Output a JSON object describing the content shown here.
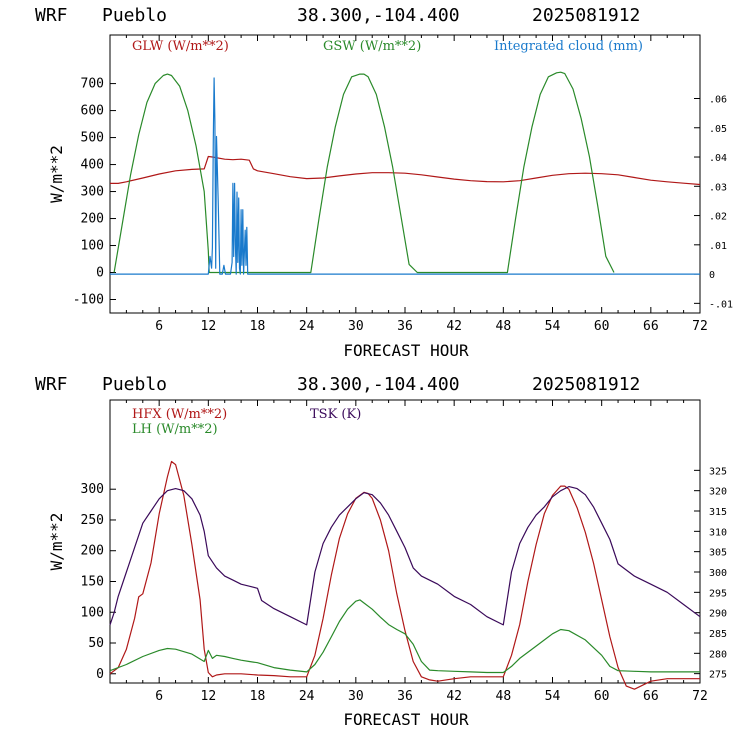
{
  "chart_data": [
    {
      "type": "line",
      "header": {
        "model": "WRF",
        "site": "Pueblo",
        "coords": "38.300,-104.400",
        "init": "2025081912"
      },
      "xlabel": "FORECAST HOUR",
      "ylabel": "W/m**2",
      "xlim": [
        0,
        72
      ],
      "ylim": [
        -150,
        880
      ],
      "y2lim": [
        -0.0133,
        0.0817
      ],
      "xticks": [
        6,
        12,
        18,
        24,
        30,
        36,
        42,
        48,
        54,
        60,
        66,
        72
      ],
      "xtick_labels": [
        "6",
        "12",
        "18",
        "24",
        "30",
        "36",
        "42",
        "48",
        "54",
        "60",
        "66",
        "72"
      ],
      "yticks": [
        -100,
        0,
        100,
        200,
        300,
        400,
        500,
        600,
        700
      ],
      "ytick_labels": [
        "-100",
        "0",
        "100",
        "200",
        "300",
        "400",
        "500",
        "600",
        "700"
      ],
      "y2ticks": [
        -0.01,
        0,
        0.01,
        0.02,
        0.03,
        0.04,
        0.05,
        0.06
      ],
      "y2tick_labels": [
        "-.01",
        "0",
        ".01",
        ".02",
        ".03",
        ".04",
        ".05",
        ".06"
      ],
      "legend": [
        {
          "label": "GLW (W/m**2)",
          "color": "#b01818"
        },
        {
          "label": "GSW (W/m**2)",
          "color": "#2a8a2a"
        },
        {
          "label": "Integrated cloud (mm)",
          "color": "#1a7acc"
        }
      ],
      "series": [
        {
          "name": "GLW (W/m**2)",
          "color": "#b01818",
          "axis": "left",
          "x": [
            0,
            1,
            2,
            4,
            6,
            8,
            10,
            11.5,
            12,
            12.5,
            14,
            15,
            16,
            17,
            17.5,
            18,
            20,
            22,
            24,
            26,
            28,
            30,
            32,
            34,
            36,
            38,
            40,
            42,
            44,
            46,
            48,
            50,
            52,
            54,
            56,
            58,
            60,
            62,
            64,
            66,
            68,
            70,
            72
          ],
          "y": [
            330,
            330,
            336,
            350,
            365,
            377,
            382,
            384,
            430,
            428,
            420,
            418,
            420,
            416,
            384,
            377,
            366,
            355,
            348,
            350,
            358,
            365,
            370,
            370,
            368,
            362,
            354,
            346,
            340,
            337,
            336,
            340,
            350,
            360,
            366,
            368,
            366,
            362,
            352,
            342,
            336,
            331,
            326
          ]
        },
        {
          "name": "GSW (W/m**2)",
          "color": "#2a8a2a",
          "axis": "left",
          "x": [
            0.5,
            1.5,
            2.5,
            3.5,
            4.5,
            5.5,
            6.5,
            7,
            7.5,
            8.5,
            9.5,
            10.5,
            11.5,
            12,
            12.1,
            24.5,
            25.5,
            26.5,
            27.5,
            28.5,
            29.5,
            30.5,
            31,
            31.5,
            32.5,
            33.5,
            34.5,
            35.5,
            36.5,
            37.5,
            48.5,
            49.5,
            50.5,
            51.5,
            52.5,
            53.5,
            54.5,
            55,
            55.5,
            56.5,
            57.5,
            58.5,
            59.5,
            60.5,
            61.5
          ],
          "y": [
            0,
            180,
            360,
            510,
            630,
            700,
            730,
            735,
            730,
            690,
            600,
            470,
            300,
            80,
            0,
            0,
            200,
            390,
            540,
            660,
            725,
            735,
            735,
            725,
            660,
            540,
            390,
            210,
            30,
            0,
            0,
            200,
            390,
            540,
            660,
            725,
            740,
            742,
            737,
            680,
            570,
            430,
            250,
            60,
            0
          ]
        },
        {
          "name": "Integrated cloud (mm)",
          "color": "#1a7acc",
          "axis": "right",
          "x": [
            0,
            12,
            12.2,
            12.4,
            12.5,
            12.6,
            12.7,
            12.8,
            12.9,
            13.0,
            13.2,
            13.4,
            13.7,
            13.9,
            14.1,
            14.4,
            14.7,
            14.9,
            15.0,
            15.1,
            15.2,
            15.3,
            15.4,
            15.5,
            15.6,
            15.7,
            15.8,
            15.9,
            16.0,
            16.1,
            16.2,
            16.3,
            16.5,
            16.6,
            16.7,
            16.8,
            16.9,
            17.0,
            72
          ],
          "y": [
            0,
            0,
            0.006,
            0.002,
            0.009,
            0.046,
            0.067,
            0.052,
            0.002,
            0.047,
            0.025,
            0,
            0,
            0.003,
            0,
            0,
            0,
            0.004,
            0.031,
            0.006,
            0.031,
            0.01,
            0,
            0.028,
            0.004,
            0.026,
            0.002,
            0,
            0.022,
            0.003,
            0.022,
            0,
            0.015,
            0.003,
            0.016,
            0,
            0,
            0,
            0
          ]
        }
      ]
    },
    {
      "type": "line",
      "header": {
        "model": "WRF",
        "site": "Pueblo",
        "coords": "38.300,-104.400",
        "init": "2025081912"
      },
      "xlabel": "FORECAST HOUR",
      "ylabel": "W/m**2",
      "xlim": [
        0,
        72
      ],
      "ylim": [
        -15,
        445
      ],
      "y2lim": [
        272.7,
        342.3
      ],
      "xticks": [
        6,
        12,
        18,
        24,
        30,
        36,
        42,
        48,
        54,
        60,
        66,
        72
      ],
      "xtick_labels": [
        "6",
        "12",
        "18",
        "24",
        "30",
        "36",
        "42",
        "48",
        "54",
        "60",
        "66",
        "72"
      ],
      "yticks": [
        0,
        50,
        100,
        150,
        200,
        250,
        300
      ],
      "ytick_labels": [
        "0",
        "50",
        "100",
        "150",
        "200",
        "250",
        "300"
      ],
      "y2ticks": [
        275,
        280,
        285,
        290,
        295,
        300,
        305,
        310,
        315,
        320,
        325
      ],
      "y2tick_labels": [
        "275",
        "280",
        "285",
        "290",
        "295",
        "300",
        "305",
        "310",
        "315",
        "320",
        "325"
      ],
      "legend": [
        {
          "label": "HFX (W/m**2)",
          "color": "#b01818"
        },
        {
          "label": "LH (W/m**2)",
          "color": "#2a8a2a"
        },
        {
          "label": "TSK (K)",
          "color": "#3a0a5a"
        }
      ],
      "series": [
        {
          "name": "HFX (W/m**2)",
          "color": "#b01818",
          "axis": "left",
          "x": [
            0,
            1,
            2,
            3,
            3.5,
            4,
            5,
            6,
            7,
            7.5,
            8,
            9,
            10,
            11,
            11.5,
            12,
            12.5,
            13,
            14,
            16,
            18,
            20,
            22,
            24,
            25,
            26,
            27,
            28,
            29,
            30,
            31,
            31.5,
            32,
            33,
            34,
            35,
            36,
            37,
            38,
            39,
            40,
            42,
            44,
            46,
            48,
            49,
            50,
            51,
            52,
            53,
            54,
            55,
            55.5,
            56,
            57,
            58,
            59,
            60,
            61,
            62,
            63,
            64,
            66,
            68,
            70,
            72
          ],
          "y": [
            0,
            10,
            40,
            90,
            125,
            130,
            180,
            260,
            320,
            345,
            340,
            290,
            210,
            120,
            40,
            2,
            -5,
            -2,
            0,
            0,
            -2,
            -3,
            -5,
            -5,
            30,
            90,
            160,
            220,
            260,
            285,
            295,
            293,
            285,
            250,
            200,
            130,
            70,
            20,
            -5,
            -10,
            -12,
            -8,
            -5,
            -5,
            -5,
            30,
            80,
            150,
            210,
            260,
            290,
            305,
            305,
            300,
            270,
            230,
            180,
            120,
            60,
            10,
            -20,
            -25,
            -12,
            -8,
            -8,
            -8
          ]
        },
        {
          "name": "LH (W/m**2)",
          "color": "#2a8a2a",
          "axis": "left",
          "x": [
            0,
            2,
            4,
            6,
            7,
            8,
            10,
            11.5,
            12,
            12.5,
            13,
            14,
            15,
            16,
            17,
            18,
            20,
            22,
            24,
            25,
            26,
            27,
            28,
            29,
            30,
            30.5,
            31,
            32,
            33,
            34,
            35,
            36,
            37,
            38,
            39,
            40,
            42,
            44,
            46,
            48,
            49,
            50,
            52,
            54,
            55,
            56,
            58,
            60,
            61,
            62,
            64,
            66,
            68,
            70,
            72
          ],
          "y": [
            5,
            15,
            28,
            38,
            41,
            40,
            32,
            20,
            38,
            25,
            30,
            28,
            25,
            22,
            20,
            18,
            10,
            6,
            3,
            15,
            35,
            60,
            85,
            105,
            118,
            120,
            115,
            105,
            92,
            80,
            72,
            65,
            48,
            20,
            6,
            5,
            4,
            3,
            2,
            2,
            12,
            25,
            45,
            65,
            72,
            70,
            55,
            30,
            12,
            5,
            4,
            3,
            3,
            3,
            3
          ]
        },
        {
          "name": "TSK (K)",
          "color": "#3a0a5a",
          "axis": "right",
          "x": [
            0,
            0.5,
            1,
            2,
            3,
            4,
            5,
            6,
            7,
            8,
            9,
            10,
            11,
            11.5,
            12,
            13,
            14,
            15,
            16,
            17,
            18,
            18.5,
            20,
            22,
            24,
            25,
            26,
            27,
            28,
            29,
            30,
            31,
            32,
            33,
            34,
            35,
            36,
            37,
            38,
            40,
            42,
            44,
            46,
            48,
            49,
            50,
            51,
            52,
            53,
            54,
            55,
            56,
            57,
            58,
            59,
            60,
            61,
            62,
            64,
            66,
            68,
            70,
            72
          ],
          "y": [
            287,
            290,
            294,
            300,
            306,
            312,
            315,
            318,
            320,
            320.5,
            320,
            318,
            314,
            310,
            304,
            301,
            299,
            298,
            297,
            296.5,
            296,
            293,
            291,
            289,
            287,
            300,
            307,
            311,
            314,
            316,
            318,
            319.5,
            319,
            317,
            314,
            310,
            306,
            301,
            299,
            297,
            294,
            292,
            289,
            287,
            300,
            307,
            311,
            314,
            316,
            318.5,
            320,
            321,
            320.5,
            319,
            316,
            312,
            308,
            302,
            299,
            297,
            295,
            292,
            289
          ]
        }
      ]
    }
  ]
}
